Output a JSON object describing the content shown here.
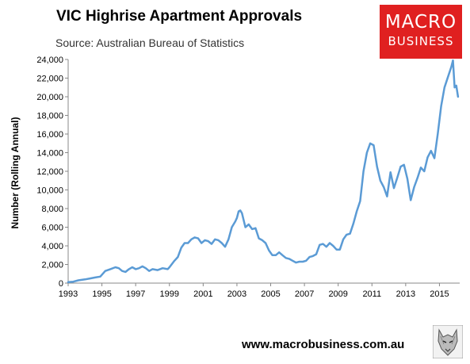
{
  "title": "VIC Highrise Apartment Approvals",
  "subtitle": "Source: Australian Bureau of Statistics",
  "logo": {
    "line1": "MACRO",
    "line2": "BUSINESS"
  },
  "website": "www.macrobusiness.com.au",
  "colors": {
    "line": "#5b9bd5",
    "logo_bg": "#e02020"
  },
  "chart_data": {
    "type": "line",
    "title": "VIC Highrise Apartment Approvals",
    "subtitle": "Source: Australian Bureau of Statistics",
    "xlabel": "",
    "ylabel": "Number (Rolling Annual)",
    "xlim": [
      1993,
      2016.2
    ],
    "ylim": [
      0,
      24000
    ],
    "xticks": [
      1993,
      1995,
      1997,
      1999,
      2001,
      2003,
      2005,
      2007,
      2009,
      2011,
      2013,
      2015
    ],
    "xtick_labels": [
      "1993",
      "1995",
      "1997",
      "1999",
      "2001",
      "2003",
      "2005",
      "2007",
      "2009",
      "2011",
      "2013",
      "2015"
    ],
    "yticks": [
      0,
      2000,
      4000,
      6000,
      8000,
      10000,
      12000,
      14000,
      16000,
      18000,
      20000,
      22000,
      24000
    ],
    "ytick_labels": [
      "0",
      "2,000",
      "4,000",
      "6,000",
      "8,000",
      "10,000",
      "12,000",
      "14,000",
      "16,000",
      "18,000",
      "20,000",
      "22,000",
      "24,000"
    ],
    "grid": false,
    "legend": "none",
    "x": [
      1993.0,
      1993.3,
      1993.6,
      1994.0,
      1994.3,
      1994.6,
      1994.9,
      1995.0,
      1995.2,
      1995.5,
      1995.8,
      1996.0,
      1996.2,
      1996.4,
      1996.6,
      1996.8,
      1997.0,
      1997.2,
      1997.4,
      1997.6,
      1997.8,
      1998.0,
      1998.3,
      1998.6,
      1998.9,
      1999.0,
      1999.3,
      1999.5,
      1999.7,
      1999.9,
      2000.1,
      2000.3,
      2000.5,
      2000.7,
      2000.9,
      2001.1,
      2001.3,
      2001.5,
      2001.7,
      2001.9,
      2002.1,
      2002.3,
      2002.5,
      2002.7,
      2002.9,
      2003.0,
      2003.1,
      2003.2,
      2003.3,
      2003.5,
      2003.7,
      2003.9,
      2004.1,
      2004.3,
      2004.5,
      2004.7,
      2004.9,
      2005.1,
      2005.3,
      2005.5,
      2005.7,
      2005.9,
      2006.1,
      2006.3,
      2006.5,
      2006.7,
      2006.9,
      2007.1,
      2007.3,
      2007.5,
      2007.7,
      2007.9,
      2008.1,
      2008.3,
      2008.5,
      2008.7,
      2008.9,
      2009.1,
      2009.3,
      2009.5,
      2009.7,
      2009.9,
      2010.1,
      2010.3,
      2010.5,
      2010.7,
      2010.9,
      2011.1,
      2011.3,
      2011.5,
      2011.7,
      2011.9,
      2012.1,
      2012.3,
      2012.5,
      2012.7,
      2012.9,
      2013.1,
      2013.3,
      2013.5,
      2013.7,
      2013.9,
      2014.1,
      2014.3,
      2014.5,
      2014.7,
      2014.9,
      2015.1,
      2015.3,
      2015.5,
      2015.7,
      2015.8,
      2015.9,
      2016.0,
      2016.1
    ],
    "series": [
      {
        "values": [
          100,
          150,
          300,
          400,
          500,
          600,
          700,
          900,
          1300,
          1500,
          1700,
          1600,
          1300,
          1200,
          1500,
          1700,
          1500,
          1600,
          1800,
          1600,
          1300,
          1500,
          1400,
          1600,
          1500,
          1700,
          2400,
          2800,
          3800,
          4300,
          4300,
          4700,
          4900,
          4800,
          4300,
          4600,
          4500,
          4200,
          4700,
          4600,
          4300,
          3900,
          4700,
          6000,
          6600,
          7000,
          7700,
          7800,
          7500,
          6000,
          6300,
          5800,
          5900,
          4800,
          4600,
          4300,
          3500,
          3000,
          3000,
          3300,
          3000,
          2700,
          2600,
          2400,
          2200,
          2300,
          2300,
          2400,
          2800,
          2900,
          3100,
          4100,
          4200,
          3900,
          4300,
          4000,
          3600,
          3600,
          4700,
          5200,
          5300,
          6400,
          7700,
          8800,
          12000,
          14000,
          15000,
          14800,
          12500,
          11000,
          10300,
          9300,
          11900,
          10200,
          11300,
          12500,
          12700,
          11200,
          8900,
          10300,
          11300,
          12400,
          12000,
          13500,
          14200,
          13400,
          16000,
          19000,
          21000,
          22100,
          23200,
          23900,
          21000,
          21200,
          20000
        ]
      }
    ]
  }
}
